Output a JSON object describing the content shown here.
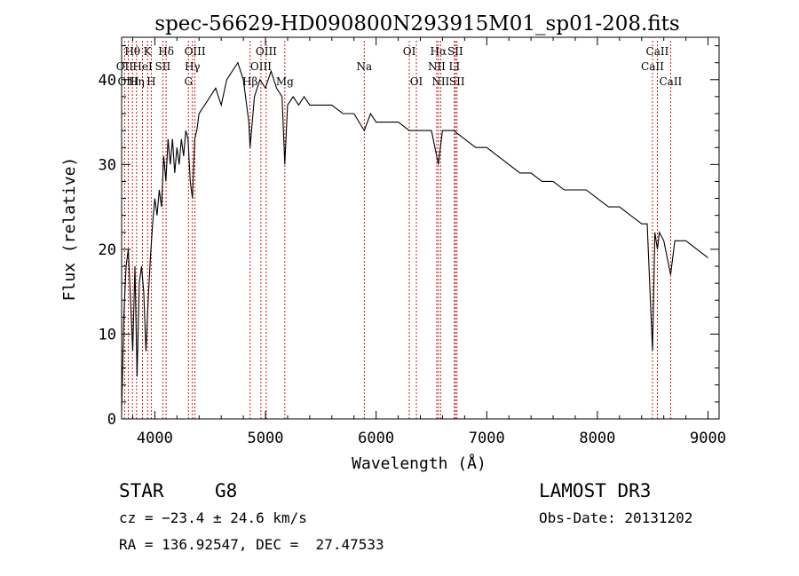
{
  "chart_data": {
    "type": "line",
    "title": "spec-56629-HD090800N293915M01_sp01-208.fits",
    "xlabel": "Wavelength (Å)",
    "ylabel": "Flux (relative)",
    "xlim": [
      3700,
      9100
    ],
    "ylim": [
      0,
      45
    ],
    "xticks": [
      4000,
      5000,
      6000,
      7000,
      8000,
      9000
    ],
    "yticks": [
      0,
      10,
      20,
      30,
      40
    ],
    "grid": false,
    "series": [
      {
        "x": [
          3700,
          3720,
          3740,
          3760,
          3780,
          3800,
          3820,
          3840,
          3860,
          3880,
          3900,
          3920,
          3940,
          3960,
          3980,
          4000,
          4020,
          4040,
          4060,
          4080,
          4100,
          4120,
          4140,
          4160,
          4180,
          4200,
          4220,
          4240,
          4260,
          4280,
          4300,
          4320,
          4340,
          4360,
          4380,
          4400,
          4450,
          4500,
          4550,
          4600,
          4650,
          4700,
          4750,
          4800,
          4850,
          4861,
          4900,
          4950,
          5000,
          5050,
          5100,
          5150,
          5175,
          5200,
          5250,
          5300,
          5350,
          5400,
          5500,
          5600,
          5700,
          5800,
          5893,
          5950,
          6000,
          6100,
          6200,
          6300,
          6400,
          6500,
          6563,
          6600,
          6700,
          6800,
          6900,
          7000,
          7100,
          7200,
          7300,
          7400,
          7500,
          7600,
          7700,
          7800,
          7900,
          8000,
          8100,
          8200,
          8300,
          8400,
          8450,
          8498,
          8520,
          8542,
          8560,
          8600,
          8662,
          8700,
          8800,
          8900,
          9000
        ],
        "y": [
          1,
          12,
          18,
          20,
          14,
          8,
          18,
          5,
          16,
          18,
          15,
          8,
          14,
          19,
          23,
          26,
          24,
          27,
          25,
          31,
          28,
          33,
          30,
          33,
          29,
          32,
          30,
          33,
          31,
          34,
          33,
          28,
          26,
          33,
          34,
          36,
          37,
          38,
          39,
          37,
          40,
          41,
          42,
          40,
          35,
          32,
          38,
          40,
          39,
          41,
          39,
          38,
          30,
          37,
          38,
          37,
          38,
          37,
          37,
          37,
          36,
          36,
          34,
          36,
          35,
          35,
          35,
          34,
          34,
          34,
          30,
          34,
          34,
          33,
          32,
          32,
          31,
          30,
          29,
          29,
          28,
          28,
          27,
          27,
          27,
          26,
          25,
          25,
          24,
          23,
          23,
          8,
          22,
          20,
          22,
          21,
          17,
          21,
          21,
          20,
          19
        ]
      }
    ]
  },
  "lines": [
    {
      "label": "Hθ",
      "x": 3798,
      "row": 1
    },
    {
      "label": "OII",
      "x": 3727,
      "row": 2
    },
    {
      "label": "OIII",
      "x": 3760,
      "row": 3
    },
    {
      "label": "K",
      "x": 3934,
      "row": 1
    },
    {
      "label": "HeI",
      "x": 3889,
      "row": 2
    },
    {
      "label": "Hη",
      "x": 3835,
      "row": 3
    },
    {
      "label": "Hδ",
      "x": 4102,
      "row": 1
    },
    {
      "label": "SII",
      "x": 4072,
      "row": 2
    },
    {
      "label": "H",
      "x": 3968,
      "row": 3
    },
    {
      "label": "OIII",
      "x": 4363,
      "row": 1
    },
    {
      "label": "Hγ",
      "x": 4340,
      "row": 2
    },
    {
      "label": "G",
      "x": 4304,
      "row": 3
    },
    {
      "label": "OIII",
      "x": 5007,
      "row": 1
    },
    {
      "label": "OIII",
      "x": 4959,
      "row": 2
    },
    {
      "label": "Hβ",
      "x": 4861,
      "row": 3
    },
    {
      "label": "Mg",
      "x": 5175,
      "row": 3
    },
    {
      "label": "Na",
      "x": 5893,
      "row": 2
    },
    {
      "label": "OI",
      "x": 6300,
      "row": 1
    },
    {
      "label": "OI",
      "x": 6364,
      "row": 3
    },
    {
      "label": "Hα",
      "x": 6563,
      "row": 1
    },
    {
      "label": "NII",
      "x": 6548,
      "row": 2
    },
    {
      "label": "NII",
      "x": 6583,
      "row": 3
    },
    {
      "label": "SII",
      "x": 6716,
      "row": 1
    },
    {
      "label": "LI",
      "x": 6708,
      "row": 2
    },
    {
      "label": "SII",
      "x": 6731,
      "row": 3
    },
    {
      "label": "CaII",
      "x": 8542,
      "row": 1
    },
    {
      "label": "CaII",
      "x": 8498,
      "row": 2
    },
    {
      "label": "CaII",
      "x": 8662,
      "row": 3
    }
  ],
  "info": {
    "class": "STAR",
    "subclass": "G8",
    "survey": "LAMOST DR3",
    "cz": "cz = −23.4 ± 24.6 km/s",
    "obsdate": "Obs-Date: 20131202",
    "coords": "RA = 136.92547, DEC =  27.47533"
  },
  "colors": {
    "spectrum": "#000000",
    "line_markers": "#cc0000",
    "axes": "#000000"
  }
}
